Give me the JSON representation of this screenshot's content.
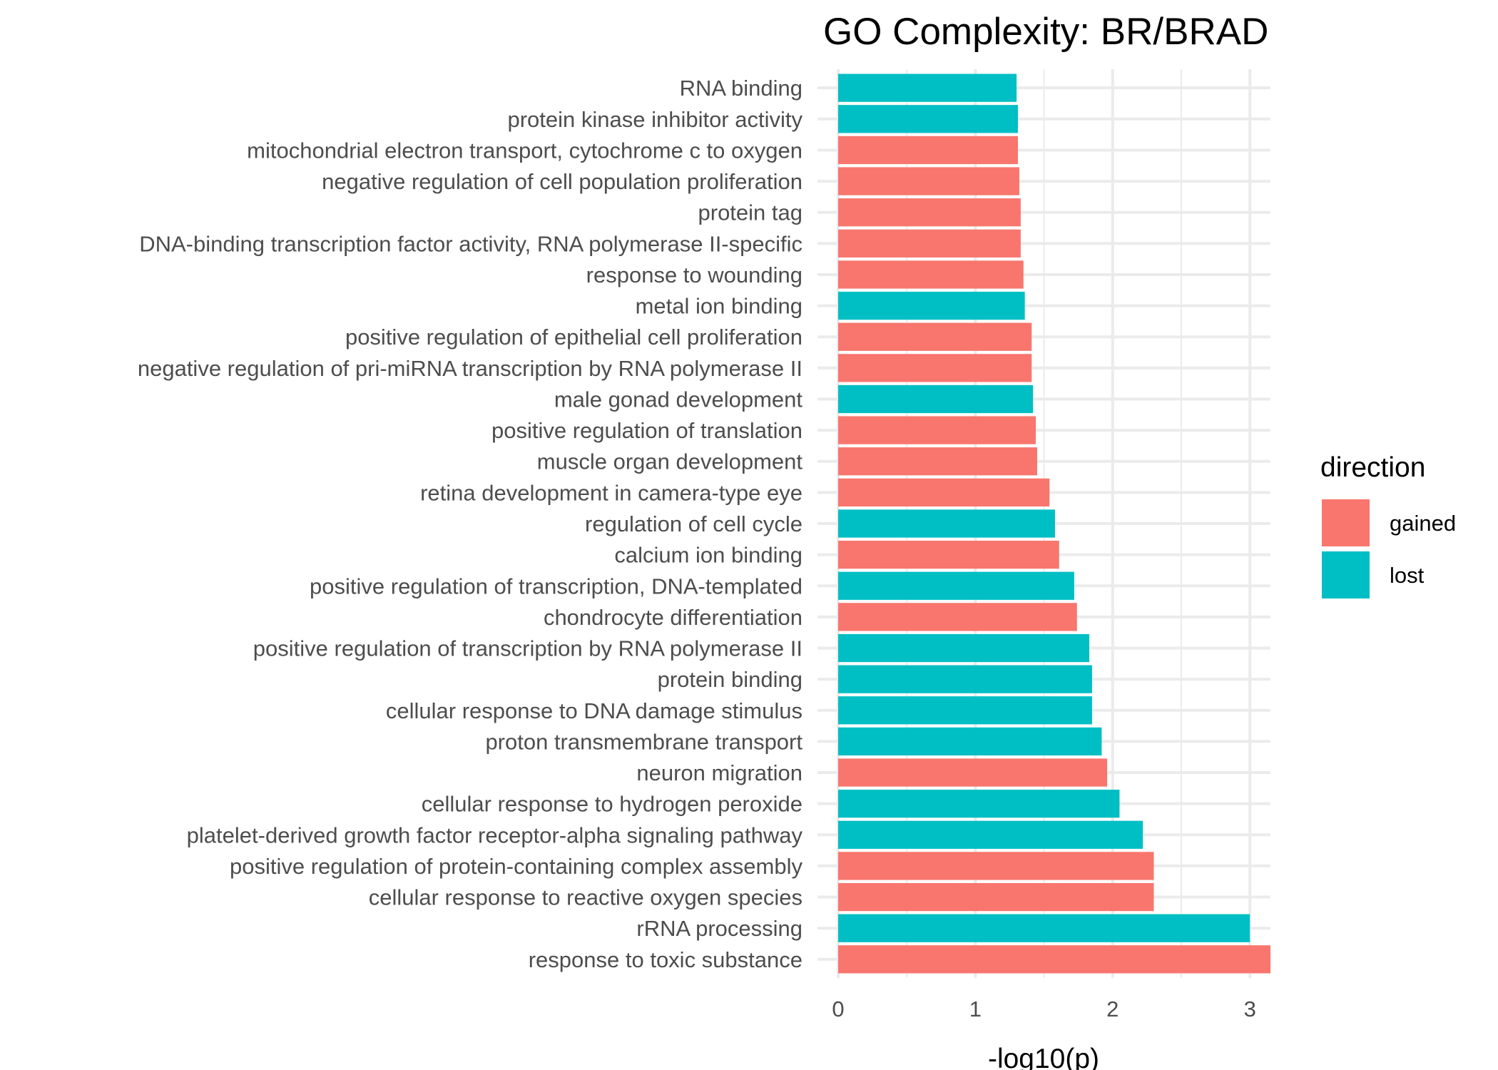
{
  "chart_data": {
    "type": "bar",
    "orientation": "horizontal",
    "title": "GO Complexity: BR/BRAD",
    "xlabel": "-log10(p)",
    "ylabel": "",
    "xlim": [
      0,
      3.15
    ],
    "x_ticks": [
      "0",
      "1",
      "2",
      "3"
    ],
    "x_tick_values": [
      0,
      1,
      2,
      3
    ],
    "grid": true,
    "legend": {
      "title": "direction",
      "placement": "right",
      "entries": [
        {
          "label": "gained",
          "color": "#F8766D"
        },
        {
          "label": "lost",
          "color": "#00BFC4"
        }
      ]
    },
    "categories": [
      "RNA binding",
      "protein kinase inhibitor activity",
      "mitochondrial electron transport, cytochrome c to oxygen",
      "negative regulation of cell population proliferation",
      "protein tag",
      "DNA-binding transcription factor activity, RNA polymerase II-specific",
      "response to wounding",
      "metal ion binding",
      "positive regulation of epithelial cell proliferation",
      "negative regulation of pri-miRNA transcription by RNA polymerase II",
      "male gonad development",
      "positive regulation of translation",
      "muscle organ development",
      "retina development in camera-type eye",
      "regulation of cell cycle",
      "calcium ion binding",
      "positive regulation of transcription, DNA-templated",
      "chondrocyte differentiation",
      "positive regulation of transcription by RNA polymerase II",
      "protein binding",
      "cellular response to DNA damage stimulus",
      "proton transmembrane transport",
      "neuron migration",
      "cellular response to hydrogen peroxide",
      "platelet-derived growth factor receptor-alpha signaling pathway",
      "positive regulation of protein-containing complex assembly",
      "cellular response to reactive oxygen species",
      "rRNA processing",
      "response to toxic substance"
    ],
    "values": [
      1.3,
      1.31,
      1.31,
      1.32,
      1.33,
      1.33,
      1.35,
      1.36,
      1.41,
      1.41,
      1.42,
      1.44,
      1.45,
      1.54,
      1.58,
      1.61,
      1.72,
      1.74,
      1.83,
      1.85,
      1.85,
      1.92,
      1.96,
      2.05,
      2.22,
      2.3,
      2.3,
      3.0,
      3.15
    ],
    "direction": [
      "lost",
      "lost",
      "gained",
      "gained",
      "gained",
      "gained",
      "gained",
      "lost",
      "gained",
      "gained",
      "lost",
      "gained",
      "gained",
      "gained",
      "lost",
      "gained",
      "lost",
      "gained",
      "lost",
      "lost",
      "lost",
      "lost",
      "gained",
      "lost",
      "lost",
      "gained",
      "gained",
      "lost",
      "gained"
    ]
  }
}
